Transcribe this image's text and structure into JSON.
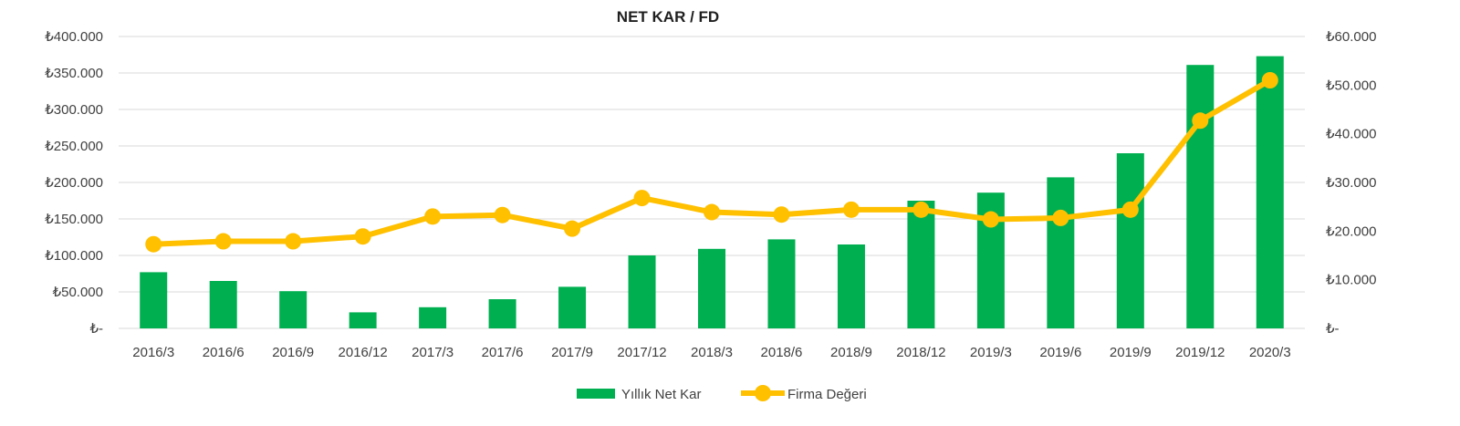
{
  "chart_data": {
    "type": "bar",
    "title": "NET KAR / FD",
    "categories": [
      "2016/3",
      "2016/6",
      "2016/9",
      "2016/12",
      "2017/3",
      "2017/6",
      "2017/9",
      "2017/12",
      "2018/3",
      "2018/6",
      "2018/9",
      "2018/12",
      "2019/3",
      "2019/6",
      "2019/9",
      "2019/12",
      "2020/3"
    ],
    "y_left": {
      "ylim": [
        0,
        400000
      ],
      "ticks": [
        "₺-",
        "₺50.000",
        "₺100.000",
        "₺150.000",
        "₺200.000",
        "₺250.000",
        "₺300.000",
        "₺350.000",
        "₺400.000"
      ]
    },
    "y_right": {
      "ylim": [
        0,
        60000
      ],
      "ticks": [
        "₺-",
        "₺10.000",
        "₺20.000",
        "₺30.000",
        "₺40.000",
        "₺50.000",
        "₺60.000"
      ]
    },
    "grid": true,
    "legend_position": "bottom",
    "series": [
      {
        "name": "Yıllık Net Kar",
        "type": "bar",
        "axis": "left",
        "color": "#00b050",
        "values": [
          77000,
          65000,
          51000,
          22000,
          29000,
          40000,
          57000,
          100000,
          109000,
          122000,
          115000,
          175000,
          186000,
          207000,
          240000,
          361000,
          373000
        ]
      },
      {
        "name": "Firma Değeri",
        "type": "line",
        "axis": "right",
        "color": "#ffc000",
        "values": [
          17300,
          17900,
          17900,
          18900,
          23000,
          23300,
          20500,
          26800,
          23900,
          23400,
          24400,
          24400,
          22400,
          22700,
          24400,
          42700,
          51000
        ]
      }
    ]
  }
}
